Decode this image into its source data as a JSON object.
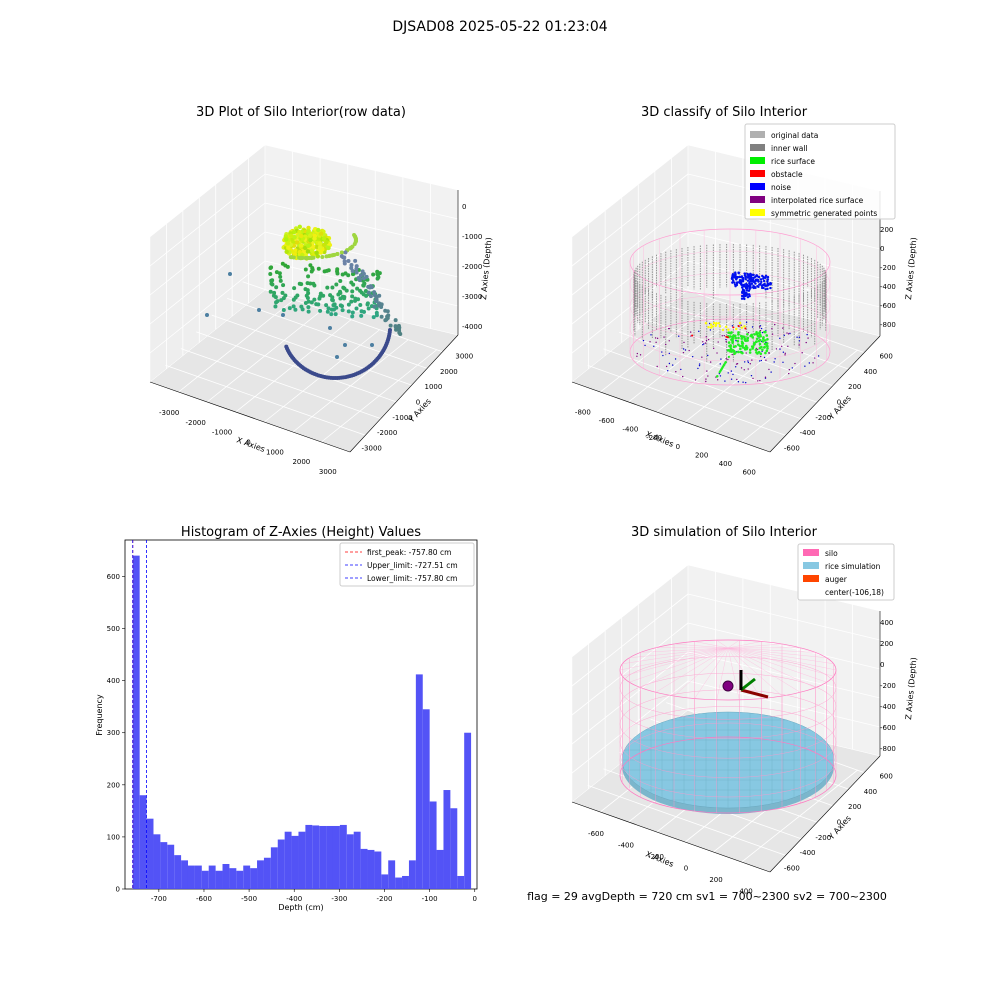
{
  "suptitle": "DJSAD08 2025-05-22 01:23:04",
  "colors": {
    "hist_bar": "#4a4af5",
    "first_peak": "#ff0000",
    "limit_line": "#0000ff",
    "silo_wire": "#ff69b4",
    "rice": "#87c8e2",
    "auger": "#ff4500",
    "wall": "#808080",
    "rice_surface": "#00ee00",
    "noise": "#0000ff",
    "obstacle": "#ff0000",
    "interp": "#800080",
    "symmetric": "#ffff00"
  },
  "panel1": {
    "title": "3D Plot of Silo Interior(row data)",
    "xlabel": "X Axies",
    "ylabel": "Y Axies",
    "zlabel": "Z Axies (Depth)",
    "xticks": [
      "-3000",
      "-2000",
      "-1000",
      "0",
      "1000",
      "2000",
      "3000"
    ],
    "yticks": [
      "-3000",
      "-2000",
      "-1000",
      "0",
      "1000",
      "2000",
      "3000"
    ],
    "zticks": [
      "0",
      "-1000",
      "-2000",
      "-3000",
      "-4000"
    ]
  },
  "panel2": {
    "title": "3D classify of Silo Interior",
    "xlabel": "X Axies",
    "ylabel": "Y Axies",
    "zlabel": "Z Axies (Depth)",
    "xticks": [
      "-800",
      "-600",
      "-400",
      "-200",
      "0",
      "200",
      "400",
      "600"
    ],
    "yticks": [
      "-600",
      "-400",
      "-200",
      "0",
      "200",
      "400",
      "600"
    ],
    "zticks": [
      "200",
      "0",
      "-200",
      "-400",
      "-600",
      "-800"
    ],
    "legend": [
      {
        "label": "original data",
        "color": "#b0b0b0"
      },
      {
        "label": "inner wall",
        "color": "#808080"
      },
      {
        "label": "rice surface",
        "color": "#00ee00"
      },
      {
        "label": "obstacle",
        "color": "#ff0000"
      },
      {
        "label": "noise",
        "color": "#0000ff"
      },
      {
        "label": "interpolated rice surface",
        "color": "#800080"
      },
      {
        "label": "symmetric generated points",
        "color": "#ffff00"
      }
    ]
  },
  "panel4": {
    "title": "3D simulation of Silo Interior",
    "xlabel": "X Axies",
    "ylabel": "Y Axies",
    "zlabel": "Z Axies (Depth)",
    "xticks": [
      "-600",
      "-400",
      "-200",
      "0",
      "200",
      "400"
    ],
    "yticks": [
      "-600",
      "-400",
      "-200",
      "0",
      "200",
      "400",
      "600"
    ],
    "zticks": [
      "400",
      "200",
      "0",
      "-200",
      "-400",
      "-600",
      "-800"
    ],
    "legend": [
      {
        "label": "silo",
        "color": "#ff69b4"
      },
      {
        "label": "rice simulation",
        "color": "#87c8e2"
      },
      {
        "label": "auger",
        "color": "#ff4500"
      },
      {
        "label": "center(-106,18)",
        "color": ""
      }
    ],
    "status": "flag = 29  avgDepth = 720 cm  sv1 = 700~2300  sv2 = 700~2300"
  },
  "chart_data": {
    "type": "bar",
    "title": "Histogram of Z-Axies (Height) Values",
    "xlabel": "Depth (cm)",
    "ylabel": "Frequency",
    "xlim": [
      -775,
      5
    ],
    "ylim": [
      0,
      670
    ],
    "xticks": [
      "-700",
      "-600",
      "-500",
      "-400",
      "-300",
      "-200",
      "-100",
      "0"
    ],
    "yticks": [
      "0",
      "100",
      "200",
      "300",
      "400",
      "500",
      "600"
    ],
    "bin_width": 15.3,
    "bin_start": -757.8,
    "values": [
      640,
      180,
      135,
      105,
      90,
      85,
      65,
      55,
      45,
      45,
      35,
      45,
      35,
      48,
      40,
      35,
      45,
      40,
      55,
      60,
      80,
      95,
      110,
      102,
      110,
      123,
      122,
      121,
      121,
      121,
      123,
      105,
      110,
      77,
      75,
      72,
      28,
      55,
      22,
      25,
      55,
      412,
      345,
      168,
      75,
      190,
      155,
      25,
      300
    ],
    "lines": [
      {
        "label": "first_peak: -757.80 cm",
        "x": -757.8,
        "color": "#ff0000"
      },
      {
        "label": "Upper_limit: -727.51 cm",
        "x": -727.51,
        "color": "#0000ff"
      },
      {
        "label": "Lower_limit: -757.80 cm",
        "x": -757.8,
        "color": "#0000ff"
      }
    ]
  }
}
